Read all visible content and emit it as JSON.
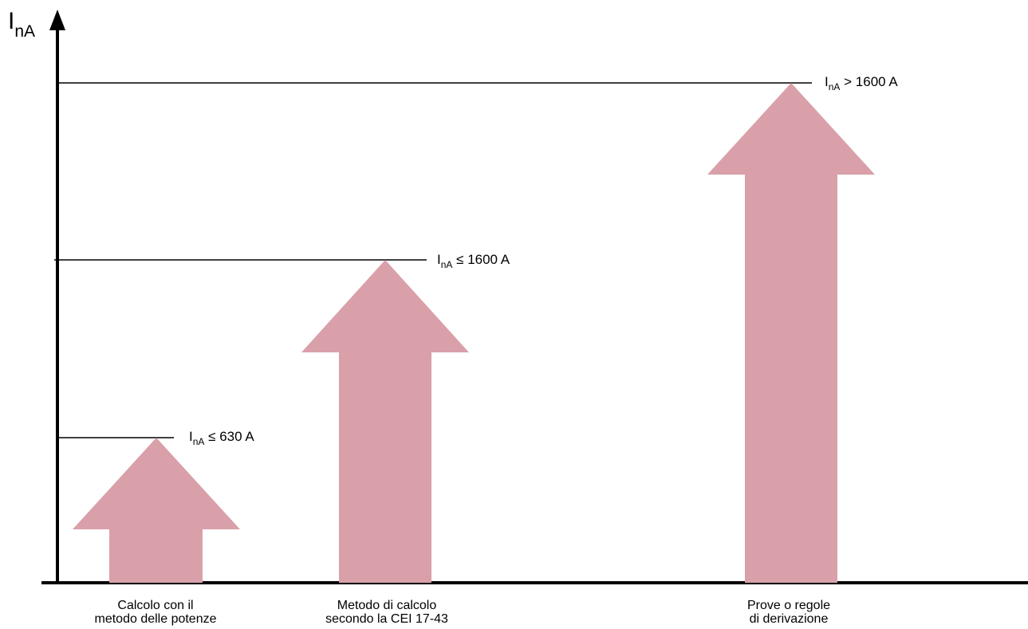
{
  "y_axis": {
    "label_main": "I",
    "label_sub": "nA"
  },
  "levels": [
    {
      "main": "I",
      "sub": "nA",
      "text": " ≤ 630 A"
    },
    {
      "main": "I",
      "sub": "nA",
      "text": " ≤ 1600 A"
    },
    {
      "main": "I",
      "sub": "nA",
      "text": " > 1600 A"
    }
  ],
  "categories": [
    {
      "line1": "Calcolo con il",
      "line2": "metodo delle potenze"
    },
    {
      "line1": "Metodo di calcolo",
      "line2": "secondo la CEI 17-43"
    },
    {
      "line1": "Prove o regole",
      "line2": "di derivazione"
    }
  ],
  "colors": {
    "arrow_fill": "#d9a0aa",
    "axis": "#000000",
    "background": "#ffffff"
  }
}
